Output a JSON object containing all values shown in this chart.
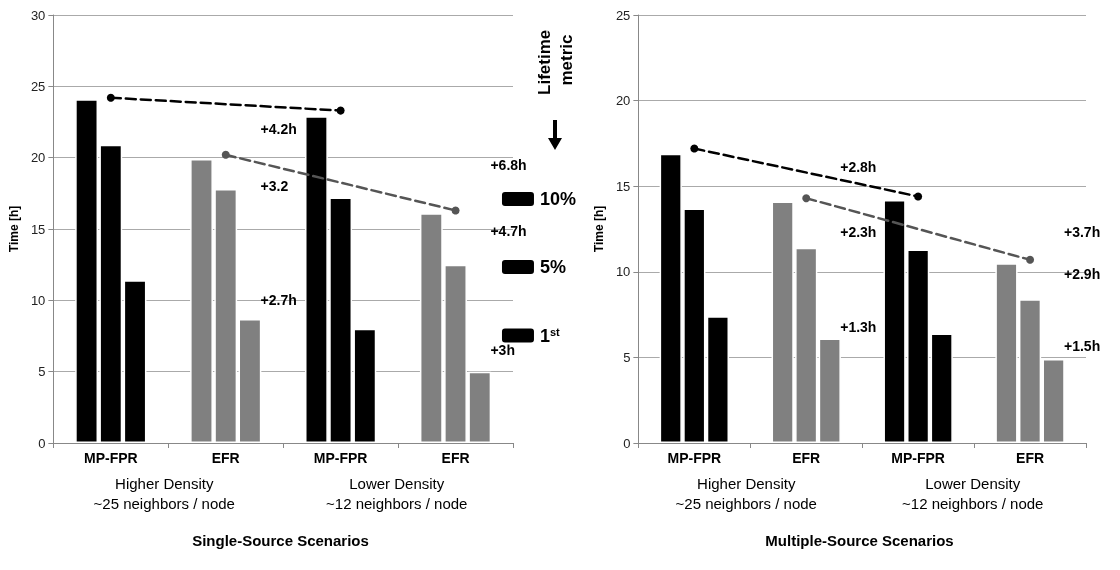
{
  "chart_data": [
    {
      "type": "bar",
      "xlabel": "Single-Source Scenarios",
      "ylabel": "Time [h]",
      "legend_title": "Lifetime metric",
      "categories": [
        "MP-FPR",
        "EFR",
        "MP-FPR",
        "EFR"
      ],
      "series": [
        {
          "name": "10%",
          "colors": [
            "#000000",
            "#808080",
            "#000000",
            "#808080"
          ],
          "values": [
            24.1,
            19.9,
            22.9,
            16.1
          ]
        },
        {
          "name": "5%",
          "colors": [
            "#000000",
            "#808080",
            "#000000",
            "#808080"
          ],
          "values": [
            20.9,
            17.8,
            17.2,
            12.5
          ]
        },
        {
          "name": "1$^{st}$",
          "colors": [
            "#000000",
            "#808080",
            "#000000",
            "#808080"
          ],
          "values": [
            11.4,
            8.7,
            8.0,
            5.0
          ]
        },
        {
          "type": "line",
          "color": "#000000",
          "line_style": "dashed",
          "marker": "circle",
          "values": [
            24.2,
            null,
            23.3,
            null
          ]
        },
        {
          "type": "line",
          "color": "#555555",
          "line_style": "dashed",
          "marker": "circle",
          "values": [
            null,
            20.2,
            null,
            16.3
          ]
        }
      ],
      "ylim": [
        0,
        30
      ],
      "yticks": [
        0,
        5,
        10,
        15,
        20,
        25,
        30
      ],
      "grid": "y",
      "legend": "right",
      "annotations": [
        "+4.2h",
        "+3.2",
        "+2.7h",
        "+6.8h",
        "+4.7h",
        "+3h",
        "Higher Density\n~25 neighbors / node",
        "Lower Density\n~12 neighbors / node"
      ]
    },
    {
      "type": "bar",
      "xlabel": "Multiple-Source Scenarios",
      "ylabel": "Time [h]",
      "categories": [
        "MP-FPR",
        "EFR",
        "MP-FPR",
        "EFR"
      ],
      "series": [
        {
          "colors": [
            "#000000",
            "#808080",
            "#000000",
            "#808080"
          ],
          "values": [
            16.9,
            14.1,
            14.2,
            10.5
          ]
        },
        {
          "colors": [
            "#000000",
            "#808080",
            "#000000",
            "#808080"
          ],
          "values": [
            13.7,
            11.4,
            11.3,
            8.4
          ]
        },
        {
          "colors": [
            "#000000",
            "#808080",
            "#000000",
            "#808080"
          ],
          "values": [
            7.4,
            6.1,
            6.4,
            4.9
          ]
        },
        {
          "type": "line",
          "color": "#000000",
          "line_style": "dashed",
          "marker": "circle",
          "values": [
            17.2,
            null,
            14.4,
            null
          ]
        },
        {
          "type": "line",
          "color": "#555555",
          "line_style": "dashed",
          "marker": "circle",
          "values": [
            null,
            14.3,
            null,
            10.7
          ]
        }
      ],
      "ylim": [
        0,
        25
      ],
      "yticks": [
        0,
        5,
        10,
        15,
        20,
        25
      ],
      "grid": "y",
      "annotations": [
        "+2.8h",
        "+2.3h",
        "+1.3h",
        "+3.7h",
        "+2.9h",
        "+1.5h",
        "Higher Density\n~25 neighbors / node",
        "Lower Density\n~12 neighbors / node"
      ]
    }
  ]
}
